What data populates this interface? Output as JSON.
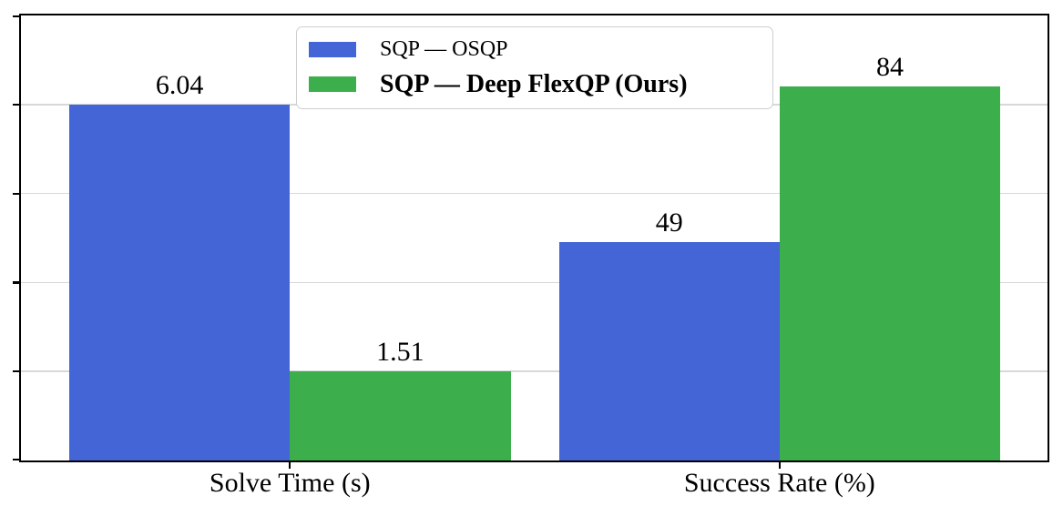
{
  "figure": {
    "background": "#ffffff",
    "text_color": "#000000",
    "grid_color": "#d8d8d8",
    "axis_color": "#000000",
    "legend_border_color": "#cfcfcf"
  },
  "chart_data": {
    "type": "bar",
    "title": "",
    "xlabel": "",
    "ylabel": "",
    "categories": [
      "Solve Time (s)",
      "Success Rate (%)"
    ],
    "series": [
      {
        "name": "SQP — OSQP",
        "color": "#4465d6",
        "values": [
          6.04,
          49
        ],
        "bar_labels": [
          "6.04",
          "49"
        ],
        "bar_heights_axis_units": [
          80,
          49
        ]
      },
      {
        "name": "SQP — Deep FlexQP (Ours)",
        "color": "#3cae4c",
        "values": [
          1.51,
          84
        ],
        "bar_labels": [
          "1.51",
          "84"
        ],
        "bar_heights_axis_units": [
          20,
          84
        ]
      }
    ],
    "ylim": [
      0,
      100
    ],
    "yticks": [
      0,
      20,
      40,
      60,
      80,
      100
    ],
    "ytick_labels_visible": false,
    "gridlines": [
      20,
      40,
      60,
      80
    ],
    "grid": true,
    "legend_position": "upper center",
    "legend_bold_entry_index": 1
  }
}
